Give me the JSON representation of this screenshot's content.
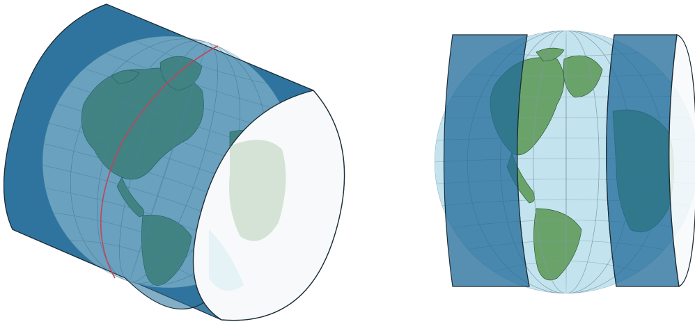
{
  "colors": {
    "background": "#ffffff",
    "ocean": "#c3e4ee",
    "land": "#6aa36a",
    "land_stroke": "#2f5a34",
    "graticule": "#7f9aa6",
    "cylinder": "#1f6a98",
    "cylinder_stroke": "#1d2e38",
    "cylinder_end": "#f7f9fa",
    "tangent_line": "#c2445a",
    "outline": "#1d2e38"
  },
  "figures": [
    {
      "id": "oblique-cylinder",
      "icon": "cylinder-wrapped-globe-icon",
      "transparent_hull": true,
      "tangent_great_circle": true
    },
    {
      "id": "transverse-cylinder-gores",
      "icon": "globe-with-cylindrical-gores-icon",
      "transparent_hull": true,
      "tangent_great_circle": false
    }
  ]
}
